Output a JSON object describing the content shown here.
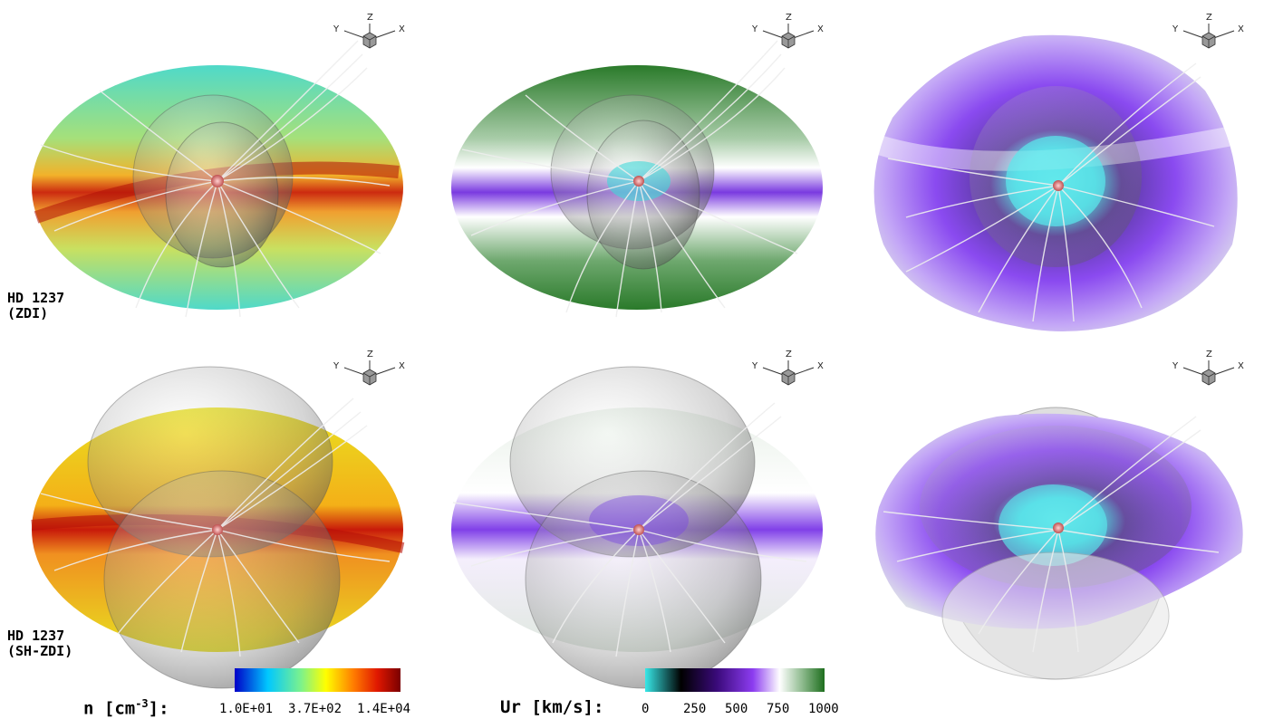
{
  "panels": [
    {
      "row": 0,
      "col": 0,
      "colormap": "density",
      "star_label": "HD 1237",
      "method_label": "(ZDI)"
    },
    {
      "row": 0,
      "col": 1,
      "colormap": "velocity",
      "star_label": "",
      "method_label": ""
    },
    {
      "row": 0,
      "col": 2,
      "colormap": "velocity",
      "star_label": "",
      "method_label": ""
    },
    {
      "row": 1,
      "col": 0,
      "colormap": "density",
      "star_label": "HD 1237",
      "method_label": "(SH-ZDI)"
    },
    {
      "row": 1,
      "col": 1,
      "colormap": "velocity",
      "star_label": "",
      "method_label": ""
    },
    {
      "row": 1,
      "col": 2,
      "colormap": "velocity",
      "star_label": "",
      "method_label": ""
    }
  ],
  "axis_triad": {
    "z": "Z",
    "y": "Y",
    "x": "X"
  },
  "colorbars": {
    "density": {
      "title_main": "n [cm",
      "title_exp": "-3",
      "title_tail": "]:",
      "ticks": [
        "1.0E+01",
        "3.7E+02",
        "1.4E+04"
      ],
      "stops": [
        "#0000c8",
        "#00c8ff",
        "#7cf28c",
        "#ffff00",
        "#ff7a00",
        "#e01800",
        "#7a0000"
      ]
    },
    "velocity": {
      "title": "Ur [km/s]:",
      "ticks": [
        "0",
        "250",
        "500",
        "750",
        "1000"
      ],
      "stops": [
        "#38e8e8",
        "#000000",
        "#3a0a7a",
        "#8c3cf0",
        "#ffffff",
        "#8ab88a",
        "#1e6e1e"
      ]
    }
  }
}
